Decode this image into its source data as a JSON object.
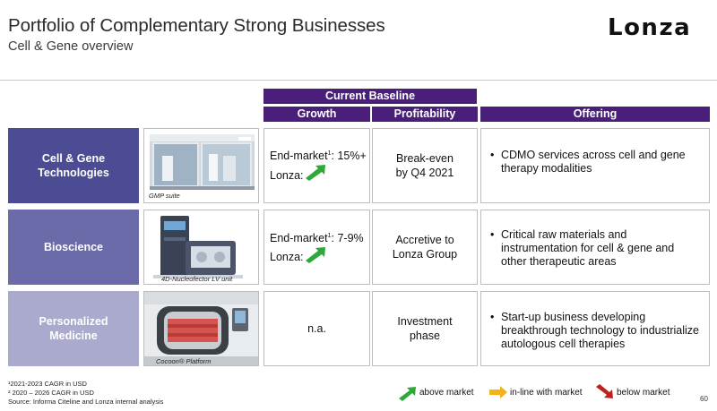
{
  "header": {
    "title": "Portfolio of Complementary Strong Businesses",
    "subtitle": "Cell & Gene overview",
    "logo_text": "Lonza"
  },
  "table": {
    "group_header": "Current Baseline",
    "columns": {
      "growth": "Growth",
      "profitability": "Profitability",
      "offering": "Offering"
    },
    "rows": [
      {
        "category": "Cell & Gene\nTechnologies",
        "category_color": "#4b4c93",
        "image_caption": "GMP suite",
        "growth_line1_prefix": "End-market",
        "growth_line1_sup": "1",
        "growth_line1_value": ": 15%+",
        "growth_line2": "Lonza:",
        "growth_arrow": "green-up",
        "profitability": "Break-even\nby Q4 2021",
        "offering": "CDMO services across cell and gene therapy modalities"
      },
      {
        "category": "Bioscience",
        "category_color": "#6a6ba8",
        "image_caption": "4D-Nucleofector LV unit",
        "growth_line1_prefix": "End-market",
        "growth_line1_sup": "1",
        "growth_line1_value": ": 7-9%",
        "growth_line2": "Lonza:",
        "growth_arrow": "green-up",
        "profitability": "Accretive to\nLonza Group",
        "offering": "Critical raw materials and instrumentation for cell & gene and other therapeutic areas"
      },
      {
        "category": "Personalized\nMedicine",
        "category_color": "#a9aacd",
        "image_caption": "Cocoon® Platform",
        "growth_text": "n.a.",
        "profitability": "Investment\nphase",
        "offering": "Start-up business developing breakthrough technology to industrialize autologous cell therapies"
      }
    ],
    "bullet": "•"
  },
  "footnotes": {
    "note1": "¹2021-2023 CAGR in USD",
    "note2": "² 2020 – 2026 CAGR in USD",
    "source": "Source: Informa Citeline and Lonza internal analysis"
  },
  "legend": [
    {
      "label": "above market",
      "color": "#2ea83a",
      "icon": "green-arrow-up-icon"
    },
    {
      "label": "in-line with market",
      "color": "#f2b21a",
      "icon": "yellow-arrow-right-icon"
    },
    {
      "label": "below market",
      "color": "#c0201e",
      "icon": "red-arrow-down-icon"
    }
  ],
  "page_number": "60"
}
